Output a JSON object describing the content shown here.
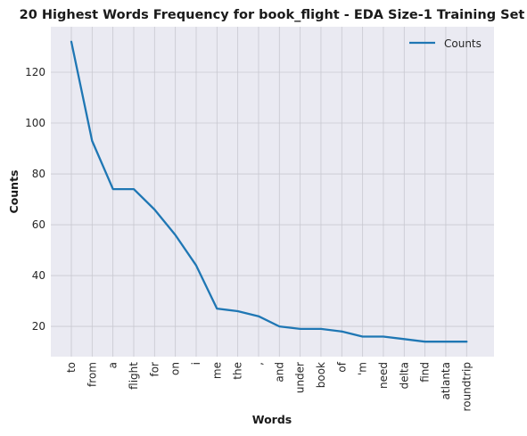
{
  "chart_data": {
    "type": "line",
    "title": "20 Highest Words Frequency for book_flight - EDA Size-1 Training Set",
    "xlabel": "Words",
    "ylabel": "Counts",
    "categories": [
      "to",
      "from",
      "a",
      "flight",
      "for",
      "on",
      "i",
      "me",
      "the",
      ",",
      "and",
      "under",
      "book",
      "of",
      "'m",
      "need",
      "delta",
      "find",
      "atlanta",
      "roundtrip"
    ],
    "series": [
      {
        "name": "Counts",
        "values": [
          132,
          93,
          74,
          74,
          66,
          56,
          44,
          27,
          26,
          24,
          20,
          19,
          19,
          18,
          16,
          16,
          15,
          14,
          14,
          14
        ]
      }
    ],
    "yticks": [
      20,
      40,
      60,
      80,
      100,
      120
    ],
    "ylim": [
      8.1,
      137.9
    ],
    "grid": true,
    "legend": "top-right",
    "colors": {
      "line": "#1f77b4",
      "background": "#eaeaf2",
      "grid": "#c8c8d0"
    }
  }
}
